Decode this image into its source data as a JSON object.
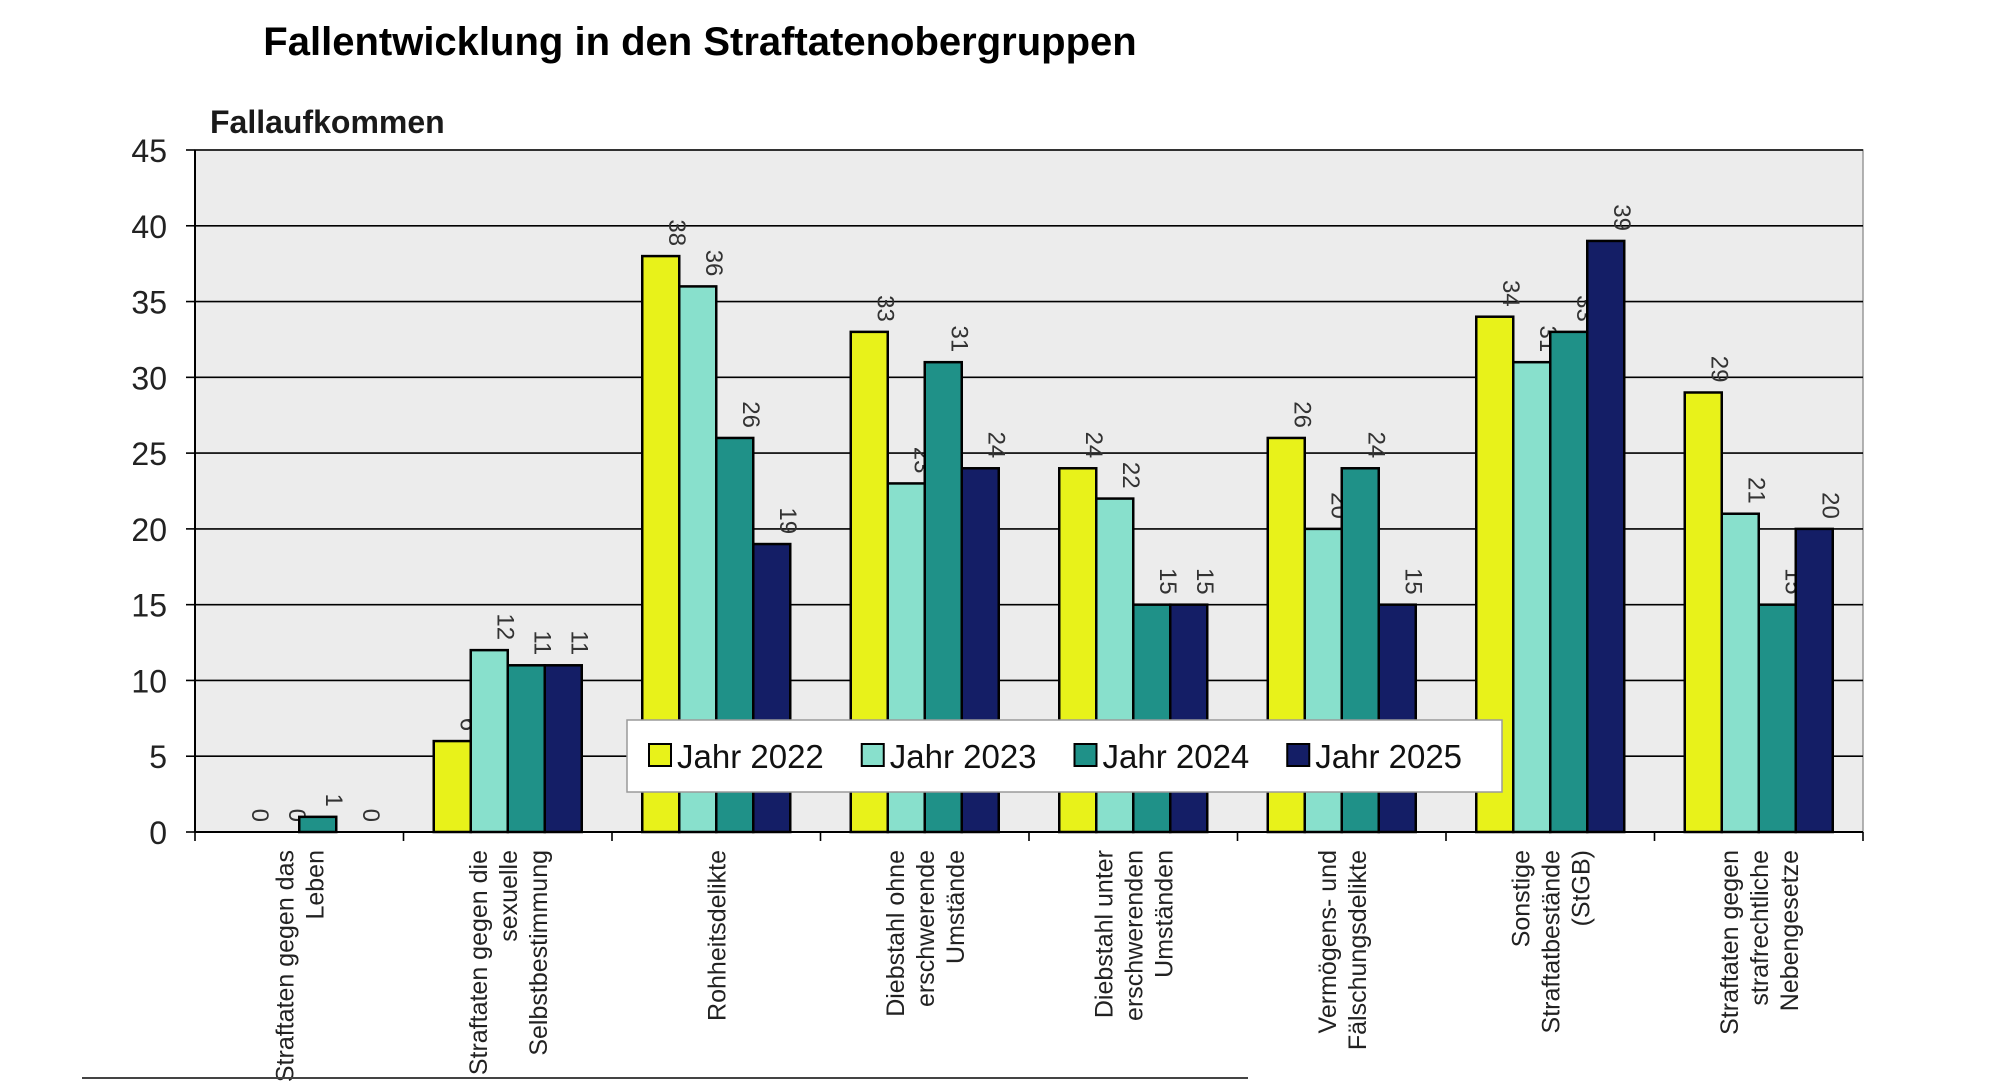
{
  "chart_data": {
    "type": "bar",
    "title": "Fallentwicklung in den Straftatenobergruppen",
    "ylabel": "Fallaufkommen",
    "xlabel": "",
    "ylim": [
      0,
      45
    ],
    "yticks": [
      0,
      5,
      10,
      15,
      20,
      25,
      30,
      35,
      40,
      45
    ],
    "grid": true,
    "legend_position": "bottom-center",
    "categories": [
      [
        "Straftaten gegen das",
        "Leben"
      ],
      [
        "Straftaten gegen die",
        "sexuelle",
        "Selbstbestimmung"
      ],
      [
        "Rohheitsdelikte"
      ],
      [
        "Diebstahl ohne",
        "erschwerende",
        "Umstände"
      ],
      [
        "Diebstahl unter",
        "erschwerenden",
        "Umständen"
      ],
      [
        "Vermögens- und",
        "Fälschungsdelikte"
      ],
      [
        "Sonstige",
        "Straftatbestände",
        "(StGB)"
      ],
      [
        "Straftaten gegen",
        "strafrechtliche",
        "Nebengesetze"
      ]
    ],
    "series": [
      {
        "name": "Jahr 2022",
        "color": "#e8f21a",
        "values": [
          0,
          6,
          38,
          33,
          24,
          26,
          34,
          29
        ]
      },
      {
        "name": "Jahr 2023",
        "color": "#88e0cc",
        "values": [
          0,
          12,
          36,
          23,
          22,
          20,
          31,
          21
        ]
      },
      {
        "name": "Jahr 2024",
        "color": "#1f9188",
        "values": [
          1,
          11,
          26,
          31,
          15,
          24,
          33,
          15
        ]
      },
      {
        "name": "Jahr 2025",
        "color": "#141e66",
        "values": [
          0,
          11,
          19,
          24,
          15,
          15,
          39,
          20
        ]
      }
    ]
  }
}
